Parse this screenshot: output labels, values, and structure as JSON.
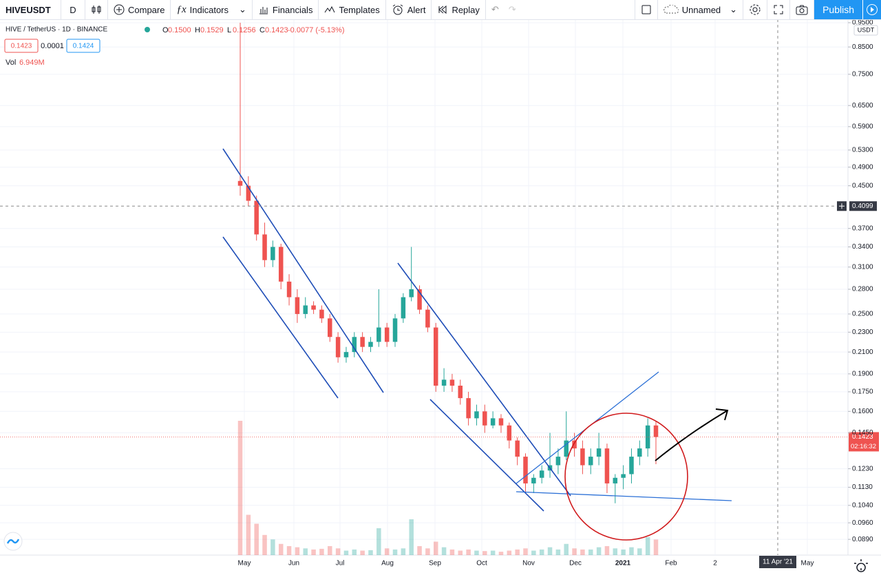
{
  "toolbar": {
    "symbol": "HIVEUSDT",
    "interval": "D",
    "compare": "Compare",
    "indicators": "Indicators",
    "financials": "Financials",
    "templates": "Templates",
    "alert": "Alert",
    "replay": "Replay",
    "layout_name": "Unnamed",
    "publish": "Publish"
  },
  "legend": {
    "title": "HIVE / TetherUS · 1D · BINANCE",
    "ohlc": [
      {
        "label": "O",
        "value": "0.1500"
      },
      {
        "label": "H",
        "value": "0.1529"
      },
      {
        "label": "L",
        "value": "0.1256"
      },
      {
        "label": "C",
        "value": "0.1423"
      }
    ],
    "change": "-0.0077 (-5.13%)",
    "bid": "0.1423",
    "spread": "0.0001",
    "ask": "0.1424",
    "volume_name": "Vol",
    "volume_value": "6.949M"
  },
  "chart_data": {
    "type": "candlestick",
    "open": [
      0.46,
      0.45,
      0.42,
      0.36,
      0.32,
      0.34,
      0.29,
      0.27,
      0.25,
      0.26,
      0.255,
      0.245,
      0.225,
      0.205,
      0.21,
      0.225,
      0.215,
      0.22,
      0.235,
      0.22,
      0.245,
      0.27,
      0.28,
      0.255,
      0.235,
      0.18,
      0.185,
      0.18,
      0.17,
      0.155,
      0.16,
      0.15,
      0.155,
      0.15,
      0.14,
      0.13,
      0.115,
      0.118,
      0.122,
      0.125,
      0.13,
      0.14,
      0.135,
      0.125,
      0.13,
      0.135,
      0.115,
      0.118,
      0.12,
      0.13,
      0.135,
      0.15
    ],
    "high": [
      0.95,
      0.47,
      0.43,
      0.38,
      0.35,
      0.345,
      0.3,
      0.28,
      0.27,
      0.265,
      0.26,
      0.25,
      0.23,
      0.215,
      0.23,
      0.23,
      0.225,
      0.28,
      0.24,
      0.25,
      0.275,
      0.34,
      0.285,
      0.26,
      0.24,
      0.195,
      0.19,
      0.185,
      0.175,
      0.165,
      0.165,
      0.16,
      0.158,
      0.152,
      0.142,
      0.132,
      0.12,
      0.125,
      0.145,
      0.135,
      0.16,
      0.145,
      0.14,
      0.135,
      0.145,
      0.138,
      0.12,
      0.125,
      0.135,
      0.14,
      0.155,
      0.1529
    ],
    "low": [
      0.43,
      0.41,
      0.35,
      0.31,
      0.31,
      0.28,
      0.26,
      0.24,
      0.245,
      0.25,
      0.24,
      0.22,
      0.2,
      0.2,
      0.205,
      0.21,
      0.21,
      0.215,
      0.215,
      0.215,
      0.24,
      0.265,
      0.25,
      0.23,
      0.175,
      0.175,
      0.175,
      0.165,
      0.15,
      0.15,
      0.145,
      0.148,
      0.145,
      0.135,
      0.125,
      0.11,
      0.11,
      0.115,
      0.118,
      0.12,
      0.128,
      0.13,
      0.12,
      0.12,
      0.125,
      0.11,
      0.105,
      0.112,
      0.115,
      0.125,
      0.13,
      0.1256
    ],
    "close": [
      0.45,
      0.42,
      0.36,
      0.32,
      0.34,
      0.29,
      0.27,
      0.25,
      0.26,
      0.255,
      0.245,
      0.225,
      0.205,
      0.21,
      0.225,
      0.215,
      0.22,
      0.235,
      0.22,
      0.245,
      0.27,
      0.28,
      0.255,
      0.235,
      0.18,
      0.185,
      0.18,
      0.17,
      0.155,
      0.16,
      0.15,
      0.155,
      0.15,
      0.14,
      0.13,
      0.115,
      0.118,
      0.122,
      0.125,
      0.13,
      0.14,
      0.135,
      0.125,
      0.13,
      0.135,
      0.115,
      0.118,
      0.12,
      0.13,
      0.135,
      0.15,
      0.1423
    ],
    "volume": [
      60000000,
      18000000,
      14000000,
      9000000,
      7000000,
      5000000,
      4000000,
      3500000,
      3000000,
      2500000,
      2800000,
      4000000,
      3000000,
      2000000,
      2500000,
      2000000,
      2200000,
      12000000,
      3000000,
      2500000,
      3000000,
      16000000,
      4000000,
      3000000,
      6000000,
      3500000,
      2500000,
      2000000,
      2500000,
      2000000,
      1800000,
      2000000,
      1500000,
      2000000,
      2500000,
      3000000,
      2000000,
      2500000,
      3500000,
      2500000,
      5000000,
      3000000,
      2500000,
      2500000,
      3500000,
      4000000,
      3000000,
      2500000,
      3500000,
      3000000,
      8000000,
      6949000
    ],
    "up_color": "#26a69a",
    "down_color": "#ef5350",
    "log_scale": true,
    "grid": true,
    "ylim": [
      0.0828,
      0.965
    ],
    "yticks": [
      {
        "value": 0.95,
        "label": "0.9500"
      },
      {
        "value": 0.85,
        "label": "0.8500"
      },
      {
        "value": 0.75,
        "label": "0.7500"
      },
      {
        "value": 0.65,
        "label": "0.6500"
      },
      {
        "value": 0.59,
        "label": "0.5900"
      },
      {
        "value": 0.53,
        "label": "0.5300"
      },
      {
        "value": 0.49,
        "label": "0.4900"
      },
      {
        "value": 0.45,
        "label": "0.4500"
      },
      {
        "value": 0.37,
        "label": "0.3700"
      },
      {
        "value": 0.34,
        "label": "0.3400"
      },
      {
        "value": 0.31,
        "label": "0.3100"
      },
      {
        "value": 0.28,
        "label": "0.2800"
      },
      {
        "value": 0.25,
        "label": "0.2500"
      },
      {
        "value": 0.23,
        "label": "0.2300"
      },
      {
        "value": 0.21,
        "label": "0.2100"
      },
      {
        "value": 0.19,
        "label": "0.1900"
      },
      {
        "value": 0.175,
        "label": "0.1750"
      },
      {
        "value": 0.16,
        "label": "0.1600"
      },
      {
        "value": 0.145,
        "label": "0.1450"
      },
      {
        "value": 0.123,
        "label": "0.1230"
      },
      {
        "value": 0.113,
        "label": "0.1130"
      },
      {
        "value": 0.104,
        "label": "0.1040"
      },
      {
        "value": 0.096,
        "label": "0.0960"
      },
      {
        "value": 0.089,
        "label": "0.0890"
      }
    ],
    "y_axis_unit": "USDT",
    "time_labels": [
      "May",
      "Jun",
      "Jul",
      "Aug",
      "Sep",
      "Oct",
      "Nov",
      "Dec",
      "2021",
      "Feb",
      "2",
      "May"
    ],
    "crosshair_price": {
      "value": 0.4099,
      "label": "0.4099"
    },
    "crosshair_date": "11 Apr '21",
    "last_price": {
      "value": 0.1423,
      "label": "0.1423"
    },
    "countdown": "02:16:32"
  }
}
